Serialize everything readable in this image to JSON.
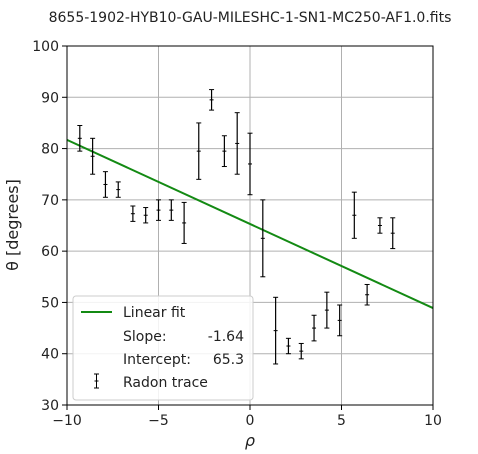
{
  "chart_data": {
    "type": "scatter",
    "title": "8655-1902-HYB10-GAU-MILESHC-1-SN1-MC250-AF1.0.fits",
    "xlabel": "ρ",
    "ylabel": "θ [degrees]",
    "xlim": [
      -10,
      10
    ],
    "ylim": [
      30,
      100
    ],
    "xticks": [
      -10,
      -5,
      0,
      5,
      10
    ],
    "xtick_labels": [
      "−10",
      "−5",
      "0",
      "5",
      "10"
    ],
    "yticks": [
      30,
      40,
      50,
      60,
      70,
      80,
      90,
      100
    ],
    "ytick_labels": [
      "30",
      "40",
      "50",
      "60",
      "70",
      "80",
      "90",
      "100"
    ],
    "grid": true,
    "legend_position": "lower-left",
    "colors": {
      "fit_line": "#138a13",
      "points": "#000000",
      "grid": "#b0b0b0"
    },
    "fit": {
      "name": "Linear fit",
      "slope": -1.64,
      "intercept": 65.3,
      "slope_label": "Slope:",
      "slope_value": "-1.64",
      "intercept_label": "Intercept:",
      "intercept_value": "65.3"
    },
    "series": [
      {
        "name": "Radon trace",
        "points": [
          {
            "x": -9.3,
            "y": 82.0,
            "err": 2.5
          },
          {
            "x": -8.6,
            "y": 78.5,
            "err": 3.5
          },
          {
            "x": -7.9,
            "y": 73.0,
            "err": 2.5
          },
          {
            "x": -7.2,
            "y": 72.0,
            "err": 1.5
          },
          {
            "x": -6.4,
            "y": 67.3,
            "err": 1.5
          },
          {
            "x": -5.7,
            "y": 67.0,
            "err": 1.5
          },
          {
            "x": -5.0,
            "y": 68.0,
            "err": 2.0
          },
          {
            "x": -4.3,
            "y": 68.0,
            "err": 2.0
          },
          {
            "x": -3.6,
            "y": 65.5,
            "err": 4.0
          },
          {
            "x": -2.8,
            "y": 79.5,
            "err": 5.5
          },
          {
            "x": -2.1,
            "y": 89.5,
            "err": 2.0
          },
          {
            "x": -1.4,
            "y": 79.5,
            "err": 3.0
          },
          {
            "x": -0.7,
            "y": 81.0,
            "err": 6.0
          },
          {
            "x": 0.0,
            "y": 77.0,
            "err": 6.0
          },
          {
            "x": 0.7,
            "y": 62.5,
            "err": 7.5
          },
          {
            "x": 1.4,
            "y": 44.5,
            "err": 6.5
          },
          {
            "x": 2.1,
            "y": 41.5,
            "err": 1.5
          },
          {
            "x": 2.8,
            "y": 40.5,
            "err": 1.5
          },
          {
            "x": 3.5,
            "y": 45.0,
            "err": 2.5
          },
          {
            "x": 4.2,
            "y": 48.5,
            "err": 3.5
          },
          {
            "x": 4.9,
            "y": 46.5,
            "err": 3.0
          },
          {
            "x": 5.7,
            "y": 67.0,
            "err": 4.5
          },
          {
            "x": 6.4,
            "y": 51.5,
            "err": 2.0
          },
          {
            "x": 7.1,
            "y": 65.0,
            "err": 1.5
          },
          {
            "x": 7.8,
            "y": 63.5,
            "err": 3.0
          }
        ]
      }
    ]
  }
}
